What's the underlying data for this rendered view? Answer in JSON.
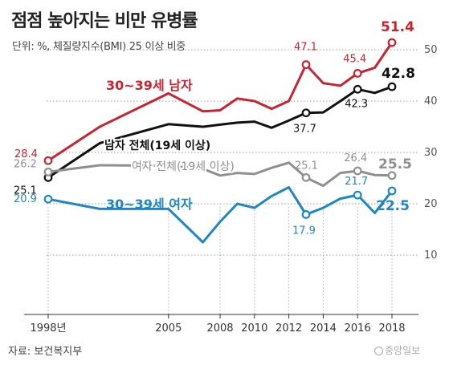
{
  "header": {
    "title": "점점 높아지는 비만 유병률",
    "subtitle": "단위: %, 체질량지수(BMI) 25 이상 비중"
  },
  "footer": {
    "source": "자료: 보건복지부",
    "credit": "중앙일보"
  },
  "chart_data": {
    "type": "line",
    "title": "점점 높아지는 비만 유병률",
    "unit": "%",
    "x": [
      1998,
      2001,
      2005,
      2007,
      2008,
      2009,
      2010,
      2011,
      2012,
      2013,
      2014,
      2015,
      2016,
      2017,
      2018
    ],
    "x_tick_labels": [
      {
        "x": 1998,
        "label": "1998년"
      },
      {
        "x": 2005,
        "label": "2005"
      },
      {
        "x": 2008,
        "label": "2008"
      },
      {
        "x": 2010,
        "label": "2010"
      },
      {
        "x": 2012,
        "label": "2012"
      },
      {
        "x": 2014,
        "label": "2014"
      },
      {
        "x": 2016,
        "label": "2016"
      },
      {
        "x": 2018,
        "label": "2018"
      }
    ],
    "y_ticks": [
      10,
      20,
      30,
      40,
      50
    ],
    "ylim": [
      0,
      55
    ],
    "grid": true,
    "series": [
      {
        "name": "30~39세 남자",
        "color": "#c8242f",
        "values": [
          28.4,
          35.0,
          41.5,
          38.0,
          38.2,
          40.5,
          40.0,
          38.5,
          40.0,
          47.1,
          43.5,
          43.0,
          45.4,
          46.5,
          51.4
        ],
        "labels": [
          {
            "x": 1998,
            "text": "28.4"
          },
          {
            "x": 2013,
            "text": "47.1"
          },
          {
            "x": 2016,
            "text": "45.4"
          },
          {
            "x": 2018,
            "text": "51.4"
          }
        ],
        "markers": [
          1998,
          2013,
          2016,
          2018
        ]
      },
      {
        "name": "남자 전체(19세 이상)",
        "color": "#111111",
        "values": [
          25.1,
          31.8,
          35.5,
          35.0,
          35.4,
          35.8,
          36.0,
          34.8,
          36.2,
          37.7,
          37.8,
          40.0,
          42.3,
          41.6,
          42.8
        ],
        "labels": [
          {
            "x": 1998,
            "text": "25.1"
          },
          {
            "x": 2013,
            "text": "37.7"
          },
          {
            "x": 2016,
            "text": "42.3"
          },
          {
            "x": 2018,
            "text": "42.8"
          }
        ],
        "markers": [
          1998,
          2013,
          2016,
          2018
        ]
      },
      {
        "name": "여자 전체(19세 이상)",
        "color": "#8f8f8f",
        "values": [
          26.2,
          27.5,
          27.4,
          26.8,
          25.5,
          26.0,
          25.8,
          27.0,
          28.0,
          25.1,
          23.5,
          26.0,
          26.4,
          25.6,
          25.5
        ],
        "labels": [
          {
            "x": 1998,
            "text": "26.2"
          },
          {
            "x": 2013,
            "text": "25.1"
          },
          {
            "x": 2016,
            "text": "26.4"
          },
          {
            "x": 2018,
            "text": "25.5"
          }
        ],
        "markers": [
          1998,
          2013,
          2016,
          2018
        ]
      },
      {
        "name": "30~39세 여자",
        "color": "#1e86c0",
        "values": [
          20.9,
          19.0,
          19.0,
          12.5,
          16.5,
          20.0,
          19.2,
          21.5,
          23.2,
          17.9,
          19.2,
          21.0,
          21.7,
          18.2,
          22.5
        ],
        "labels": [
          {
            "x": 1998,
            "text": "20.9"
          },
          {
            "x": 2013,
            "text": "17.9"
          },
          {
            "x": 2016,
            "text": "21.7"
          },
          {
            "x": 2018,
            "text": "22.5"
          }
        ],
        "markers": [
          1998,
          2013,
          2016,
          2018
        ]
      }
    ]
  }
}
